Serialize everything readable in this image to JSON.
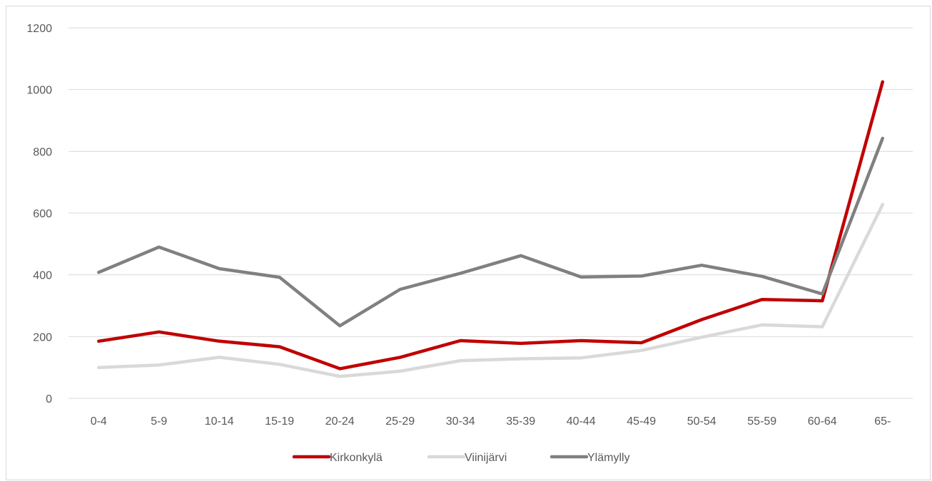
{
  "chart_data": {
    "type": "line",
    "title": "",
    "xlabel": "",
    "ylabel": "",
    "categories": [
      "0-4",
      "5-9",
      "10-14",
      "15-19",
      "20-24",
      "25-29",
      "30-34",
      "35-39",
      "40-44",
      "45-49",
      "50-54",
      "55-59",
      "60-64",
      "65-"
    ],
    "ylim": [
      0,
      1200
    ],
    "yticks": [
      0,
      200,
      400,
      600,
      800,
      1000,
      1200
    ],
    "grid": true,
    "legend_position": "bottom",
    "series": [
      {
        "name": "Kirkonkylä",
        "color": "#c00000",
        "values": [
          185,
          215,
          185,
          167,
          96,
          133,
          187,
          178,
          187,
          180,
          255,
          320,
          316,
          1025
        ]
      },
      {
        "name": "Viinijärvi",
        "color": "#d9d9d9",
        "values": [
          100,
          108,
          133,
          110,
          71,
          88,
          122,
          128,
          131,
          155,
          198,
          238,
          232,
          628
        ]
      },
      {
        "name": "Ylämylly",
        "color": "#808080",
        "values": [
          408,
          490,
          420,
          392,
          235,
          353,
          405,
          462,
          393,
          396,
          431,
          395,
          338,
          842
        ]
      }
    ]
  }
}
